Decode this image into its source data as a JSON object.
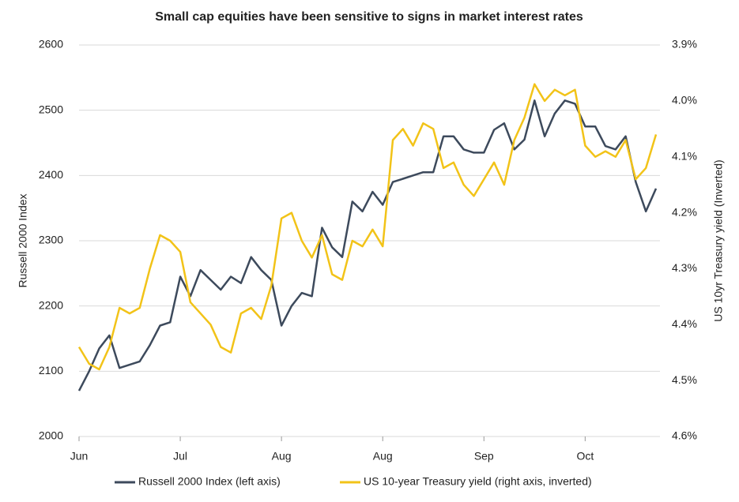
{
  "chart_data": {
    "type": "line",
    "title": "Small cap equities have been sensitive to signs in market interest rates",
    "y_label": "Russell 2000 Index",
    "y2_label": "US 10yr Treasury yield (Inverted)",
    "categories": [
      "Jun",
      null,
      null,
      null,
      null,
      null,
      null,
      null,
      null,
      null,
      "Jul",
      null,
      null,
      null,
      null,
      null,
      null,
      null,
      null,
      null,
      "Aug",
      null,
      null,
      null,
      null,
      null,
      null,
      null,
      null,
      null,
      "Aug",
      null,
      null,
      null,
      null,
      null,
      null,
      null,
      null,
      null,
      "Sep",
      null,
      null,
      null,
      null,
      null,
      null,
      null,
      null,
      null,
      "Oct",
      null,
      null,
      null,
      null,
      null,
      null,
      null
    ],
    "ylim": [
      2000,
      2600
    ],
    "yticks": [
      2000,
      2100,
      2200,
      2300,
      2400,
      2500,
      2600
    ],
    "y2lim": [
      4.6,
      3.9
    ],
    "y2ticks": [
      {
        "value": 4.6,
        "label": "4.6%"
      },
      {
        "value": 4.5,
        "label": "4.5%"
      },
      {
        "value": 4.4,
        "label": "4.4%"
      },
      {
        "value": 4.3,
        "label": "4.3%"
      },
      {
        "value": 4.2,
        "label": "4.2%"
      },
      {
        "value": 4.1,
        "label": "4.1%"
      },
      {
        "value": 4.0,
        "label": "4.0%"
      },
      {
        "value": 3.9,
        "label": "3.9%"
      }
    ],
    "grid": true,
    "legend": "bottom",
    "series": [
      {
        "name": "Russell 2000 Index (left axis)",
        "color": "#3d4a5c",
        "values": [
          2070,
          2100,
          2135,
          2155,
          2105,
          2110,
          2115,
          2140,
          2170,
          2175,
          2245,
          2215,
          2255,
          2240,
          2225,
          2245,
          2235,
          2275,
          2255,
          2240,
          2170,
          2200,
          2220,
          2215,
          2320,
          2290,
          2275,
          2360,
          2345,
          2375,
          2355,
          2390,
          2395,
          2400,
          2405,
          2405,
          2460,
          2460,
          2440,
          2435,
          2435,
          2470,
          2480,
          2440,
          2455,
          2515,
          2460,
          2495,
          2515,
          2510,
          2475,
          2475,
          2445,
          2440,
          2460,
          2390,
          2345,
          2380
        ]
      },
      {
        "name": "US 10-year Treasury yield (right axis, inverted)",
        "color": "#f2c318",
        "axis": "y2",
        "values": [
          4.44,
          4.47,
          4.48,
          4.44,
          4.37,
          4.38,
          4.37,
          4.3,
          4.24,
          4.25,
          4.27,
          4.36,
          4.38,
          4.4,
          4.44,
          4.45,
          4.38,
          4.37,
          4.39,
          4.33,
          4.21,
          4.2,
          4.25,
          4.28,
          4.24,
          4.31,
          4.32,
          4.25,
          4.26,
          4.23,
          4.26,
          4.07,
          4.05,
          4.08,
          4.04,
          4.05,
          4.12,
          4.11,
          4.15,
          4.17,
          4.14,
          4.11,
          4.15,
          4.07,
          4.03,
          3.97,
          4.0,
          3.98,
          3.99,
          3.98,
          4.08,
          4.1,
          4.09,
          4.1,
          4.07,
          4.14,
          4.12,
          4.06
        ]
      }
    ]
  }
}
